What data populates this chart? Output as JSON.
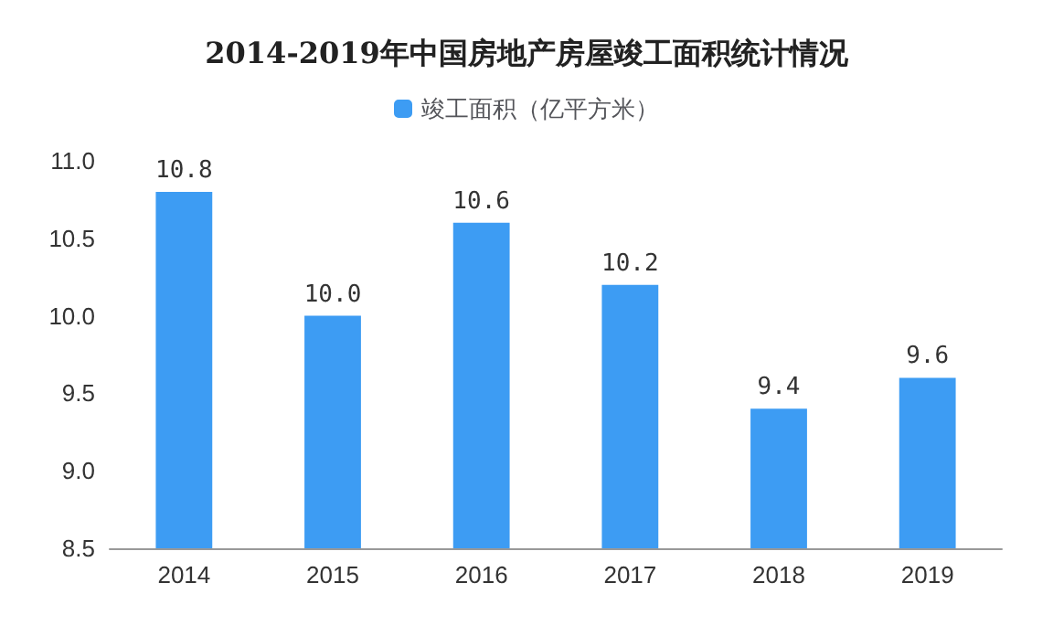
{
  "chart_data": {
    "type": "bar",
    "title": "2014-2019年中国房地产房屋竣工面积统计情况",
    "categories": [
      "2014",
      "2015",
      "2016",
      "2017",
      "2018",
      "2019"
    ],
    "series": [
      {
        "name": "竣工面积（亿平方米）",
        "color": "#3d9cf3",
        "values": [
          10.8,
          10.0,
          10.6,
          10.2,
          9.4,
          9.6
        ],
        "value_labels": [
          "10.8",
          "10.0",
          "10.6",
          "10.2",
          "9.4",
          "9.6"
        ]
      }
    ],
    "ylim": [
      8.5,
      11.0
    ],
    "yticks": [
      {
        "value": 8.5,
        "label": "8.5"
      },
      {
        "value": 9.0,
        "label": "9.0"
      },
      {
        "value": 9.5,
        "label": "9.5"
      },
      {
        "value": 10.0,
        "label": "10.0"
      },
      {
        "value": 10.5,
        "label": "10.5"
      },
      {
        "value": 11.0,
        "label": "11.0"
      }
    ],
    "legend": "top",
    "grid": false
  }
}
